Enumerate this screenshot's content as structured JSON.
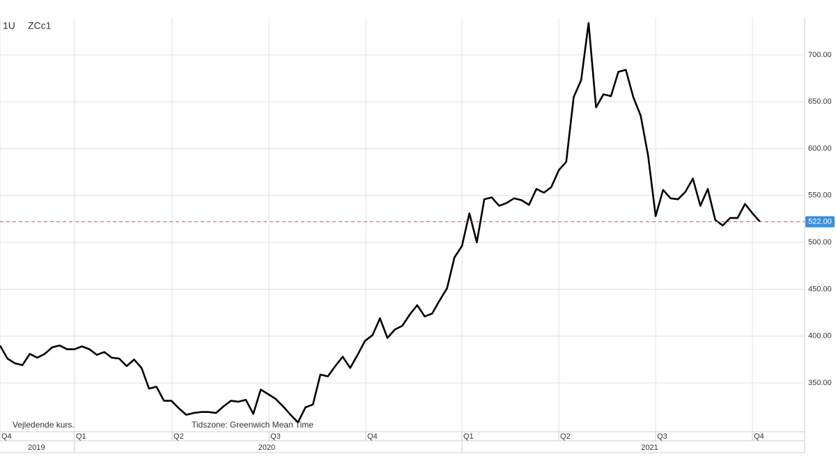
{
  "chart_data": {
    "type": "line",
    "instrument_interval": "1U",
    "instrument": "ZCc1",
    "footnote": "Vejledende kurs.",
    "timezone": "Tidszone: Greenwich Mean Time",
    "color": "#000000",
    "grid": true,
    "values": [
      390,
      376,
      371,
      369,
      381,
      377,
      381,
      388,
      390,
      386,
      386,
      389,
      386,
      380,
      383,
      377,
      376,
      368,
      375,
      366,
      344,
      346,
      331,
      331,
      323,
      316,
      318,
      319,
      319,
      318,
      325,
      331,
      330,
      332,
      317,
      343,
      338,
      333,
      325,
      316,
      308,
      324,
      327,
      359,
      357,
      368,
      378,
      366,
      380,
      395,
      401,
      419,
      398,
      407,
      411,
      423,
      433,
      421,
      424,
      438,
      451,
      484,
      496,
      531,
      500,
      546,
      548,
      539,
      542,
      547,
      545,
      540,
      557,
      553,
      559,
      577,
      586,
      655,
      673,
      734,
      644,
      658,
      656,
      682,
      684,
      655,
      635,
      592,
      528,
      556,
      547,
      546,
      554,
      568,
      539,
      557,
      524,
      518,
      526,
      526,
      541,
      531,
      522
    ],
    "xlim": [
      0,
      108
    ],
    "xticks": [
      {
        "value": 0,
        "label": "Q4"
      },
      {
        "value": 10,
        "label": "Q1"
      },
      {
        "value": 23.1,
        "label": "Q2"
      },
      {
        "value": 36.1,
        "label": "Q3"
      },
      {
        "value": 49.1,
        "label": "Q4"
      },
      {
        "value": 62,
        "label": "Q1"
      },
      {
        "value": 75,
        "label": "Q2"
      },
      {
        "value": 88,
        "label": "Q3"
      },
      {
        "value": 101,
        "label": "Q4"
      }
    ],
    "year_ticks": [
      {
        "value": 4.9,
        "label": "2019"
      },
      {
        "value": 35.8,
        "label": "2020"
      },
      {
        "value": 87.2,
        "label": "2021"
      }
    ],
    "ylim": [
      298,
      740
    ],
    "yticks": [
      {
        "value": 350,
        "label": "350.00"
      },
      {
        "value": 400,
        "label": "400.00"
      },
      {
        "value": 450,
        "label": "450.00"
      },
      {
        "value": 500,
        "label": "500.00"
      },
      {
        "value": 550,
        "label": "550.00"
      },
      {
        "value": 600,
        "label": "600.00"
      },
      {
        "value": 650,
        "label": "650.00"
      },
      {
        "value": 700,
        "label": "700.00"
      }
    ],
    "last_price": {
      "value": 522,
      "label": "522.00",
      "color": "#d9534f"
    }
  }
}
